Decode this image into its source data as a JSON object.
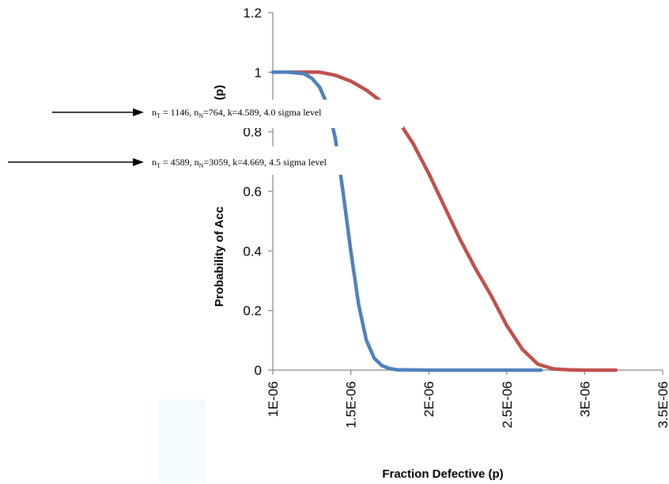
{
  "chart_data": {
    "type": "line",
    "title": "",
    "xlabel": "Fraction Defective (p)",
    "ylabel": "Probability of Acc",
    "ylabel_tail": "(p)",
    "xlim": [
      1e-06,
      3.5e-06
    ],
    "ylim": [
      0,
      1.2
    ],
    "x_ticks": [
      {
        "value": 1e-06,
        "label": "1E-06"
      },
      {
        "value": 1.5e-06,
        "label": "1.5E-06"
      },
      {
        "value": 2e-06,
        "label": "2E-06"
      },
      {
        "value": 2.5e-06,
        "label": "2.5E-06"
      },
      {
        "value": 3e-06,
        "label": "3E-06"
      },
      {
        "value": 3.5e-06,
        "label": "3.5E-06"
      }
    ],
    "y_ticks": [
      {
        "value": 0,
        "label": "0"
      },
      {
        "value": 0.2,
        "label": "0.2"
      },
      {
        "value": 0.4,
        "label": "0.4"
      },
      {
        "value": 0.6,
        "label": "0.6"
      },
      {
        "value": 0.8,
        "label": "0.8"
      },
      {
        "value": 1,
        "label": "1"
      },
      {
        "value": 1.2,
        "label": "1.2"
      }
    ],
    "grid": false,
    "legend": "none",
    "series": [
      {
        "color": "#4f81bd",
        "points": [
          [
            1e-06,
            1
          ],
          [
            1.1e-06,
            1
          ],
          [
            1.2e-06,
            0.995
          ],
          [
            1.25e-06,
            0.98
          ],
          [
            1.3e-06,
            0.95
          ],
          [
            1.35e-06,
            0.89
          ],
          [
            1.4e-06,
            0.78
          ],
          [
            1.45e-06,
            0.6
          ],
          [
            1.5e-06,
            0.4
          ],
          [
            1.55e-06,
            0.22
          ],
          [
            1.6e-06,
            0.1
          ],
          [
            1.65e-06,
            0.04
          ],
          [
            1.7e-06,
            0.015
          ],
          [
            1.75e-06,
            0.005
          ],
          [
            1.8e-06,
            0.001
          ],
          [
            2e-06,
            0
          ],
          [
            2.5e-06,
            0
          ],
          [
            2.72e-06,
            0
          ]
        ]
      },
      {
        "color": "#c0504d",
        "points": [
          [
            1e-06,
            1
          ],
          [
            1.2e-06,
            1
          ],
          [
            1.3e-06,
            1
          ],
          [
            1.4e-06,
            0.99
          ],
          [
            1.5e-06,
            0.97
          ],
          [
            1.6e-06,
            0.94
          ],
          [
            1.7e-06,
            0.9
          ],
          [
            1.8e-06,
            0.84
          ],
          [
            1.9e-06,
            0.76
          ],
          [
            2e-06,
            0.66
          ],
          [
            2.1e-06,
            0.55
          ],
          [
            2.2e-06,
            0.44
          ],
          [
            2.3e-06,
            0.34
          ],
          [
            2.4e-06,
            0.25
          ],
          [
            2.5e-06,
            0.15
          ],
          [
            2.6e-06,
            0.07
          ],
          [
            2.7e-06,
            0.02
          ],
          [
            2.8e-06,
            0.004
          ],
          [
            2.9e-06,
            0.001
          ],
          [
            3e-06,
            0
          ],
          [
            3.2e-06,
            0
          ]
        ]
      }
    ],
    "annotations": [
      {
        "pre": "n",
        "sub1": "T",
        "mid": " = 1146, n",
        "sub2": "N",
        "post": "=764, k=4.589, 4.0 sigma level"
      },
      {
        "pre": "n",
        "sub1": "T",
        "mid": " = 4589, n",
        "sub2": "N",
        "post": "=3059, k=4.669, 4.5 sigma level"
      }
    ]
  }
}
